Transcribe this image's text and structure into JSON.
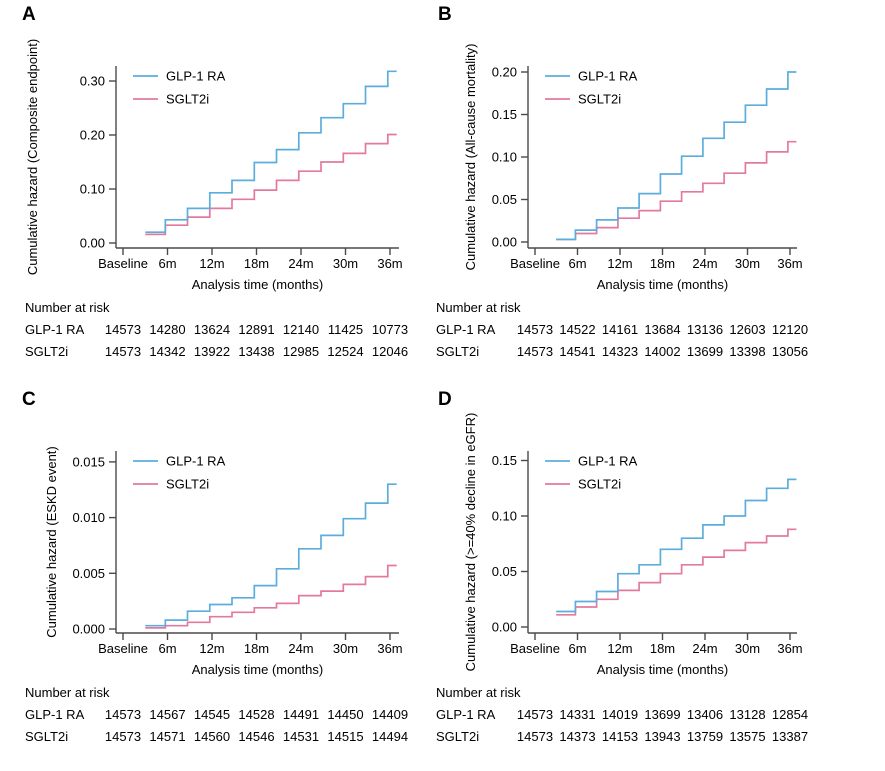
{
  "figure": {
    "background": "#ffffff",
    "colors": {
      "glp1_ra": "#5caddd",
      "sglt2i": "#e37a9d",
      "axis": "#4a4a4a",
      "text": "#000000"
    },
    "legend_labels": [
      "GLP-1 RA",
      "SGLT2i"
    ],
    "x_axis_label": "Analysis time (months)",
    "x_tick_labels": [
      "Baseline",
      "6m",
      "12m",
      "18m",
      "24m",
      "30m",
      "36m"
    ],
    "risk_header": "Number at risk"
  },
  "chart_data": [
    {
      "panel": "A",
      "type": "line",
      "step": true,
      "title": "",
      "ylabel": "Cumulative hazard (Composite endpoint)",
      "xlabel": "Analysis time (months)",
      "x_tick_labels": [
        "Baseline",
        "6m",
        "12m",
        "18m",
        "24m",
        "30m",
        "36m"
      ],
      "y_ticks": [
        0.0,
        0.1,
        0.2,
        0.3
      ],
      "y_tick_labels": [
        "0.00",
        "0.10",
        "0.20",
        "0.30"
      ],
      "ylim": [
        0,
        0.33
      ],
      "legend_position": "top-left",
      "grid": false,
      "x_start_month": 3,
      "step_months": [
        5.7,
        8.7,
        11.7,
        14.7,
        17.7,
        20.7,
        23.7,
        26.7,
        29.7,
        32.7,
        35.7
      ],
      "x_end_month": 36.9,
      "series": [
        {
          "name": "GLP-1 RA",
          "color": "#5caddd",
          "levels": [
            0.02,
            0.043,
            0.064,
            0.093,
            0.116,
            0.149,
            0.173,
            0.204,
            0.232,
            0.258,
            0.29,
            0.318
          ]
        },
        {
          "name": "SGLT2i",
          "color": "#e37a9d",
          "levels": [
            0.016,
            0.033,
            0.048,
            0.064,
            0.081,
            0.098,
            0.116,
            0.133,
            0.15,
            0.166,
            0.184,
            0.201
          ]
        }
      ],
      "number_at_risk": {
        "title": "Number at risk",
        "times": [
          "Baseline",
          "6m",
          "12m",
          "18m",
          "24m",
          "30m",
          "36m"
        ],
        "rows": [
          {
            "label": "GLP-1 RA",
            "values": [
              "14573",
              "14280",
              "13624",
              "12891",
              "12140",
              "11425",
              "10773"
            ]
          },
          {
            "label": "SGLT2i",
            "values": [
              "14573",
              "14342",
              "13922",
              "13438",
              "12985",
              "12524",
              "12046"
            ]
          }
        ]
      }
    },
    {
      "panel": "B",
      "type": "line",
      "step": true,
      "title": "",
      "ylabel": "Cumulative hazard (All-cause mortality)",
      "xlabel": "Analysis time (months)",
      "x_tick_labels": [
        "Baseline",
        "6m",
        "12m",
        "18m",
        "24m",
        "30m",
        "36m"
      ],
      "y_ticks": [
        0.0,
        0.05,
        0.1,
        0.15,
        0.2
      ],
      "y_tick_labels": [
        "0.00",
        "0.05",
        "0.10",
        "0.15",
        "0.20"
      ],
      "ylim": [
        0,
        0.21
      ],
      "legend_position": "top-left",
      "grid": false,
      "x_start_month": 3,
      "step_months": [
        5.7,
        8.7,
        11.7,
        14.7,
        17.7,
        20.7,
        23.7,
        26.7,
        29.7,
        32.7,
        35.7
      ],
      "x_end_month": 36.9,
      "series": [
        {
          "name": "GLP-1 RA",
          "color": "#5caddd",
          "levels": [
            0.003,
            0.014,
            0.026,
            0.04,
            0.057,
            0.08,
            0.101,
            0.122,
            0.141,
            0.161,
            0.18,
            0.2
          ]
        },
        {
          "name": "SGLT2i",
          "color": "#e37a9d",
          "levels": [
            0.003,
            0.01,
            0.017,
            0.028,
            0.037,
            0.048,
            0.059,
            0.069,
            0.081,
            0.093,
            0.106,
            0.118
          ]
        }
      ],
      "number_at_risk": {
        "title": "Number at risk",
        "times": [
          "Baseline",
          "6m",
          "12m",
          "18m",
          "24m",
          "30m",
          "36m"
        ],
        "rows": [
          {
            "label": "GLP-1 RA",
            "values": [
              "14573",
              "14522",
              "14161",
              "13684",
              "13136",
              "12603",
              "12120"
            ]
          },
          {
            "label": "SGLT2i",
            "values": [
              "14573",
              "14541",
              "14323",
              "14002",
              "13699",
              "13398",
              "13056"
            ]
          }
        ]
      }
    },
    {
      "panel": "C",
      "type": "line",
      "step": true,
      "title": "",
      "ylabel": "Cumulative hazard (ESKD event)",
      "xlabel": "Analysis time (months)",
      "x_tick_labels": [
        "Baseline",
        "6m",
        "12m",
        "18m",
        "24m",
        "30m",
        "36m"
      ],
      "y_ticks": [
        0.0,
        0.005,
        0.01,
        0.015
      ],
      "y_tick_labels": [
        "0.000",
        "0.005",
        "0.010",
        "0.015"
      ],
      "ylim": [
        0,
        0.016
      ],
      "legend_position": "top-left",
      "grid": false,
      "x_start_month": 3,
      "step_months": [
        5.7,
        8.7,
        11.7,
        14.7,
        17.7,
        20.7,
        23.7,
        26.7,
        29.7,
        32.7,
        35.7
      ],
      "x_end_month": 36.9,
      "series": [
        {
          "name": "GLP-1 RA",
          "color": "#5caddd",
          "levels": [
            0.0003,
            0.0008,
            0.0016,
            0.0022,
            0.0028,
            0.0039,
            0.0054,
            0.0072,
            0.0084,
            0.0099,
            0.0113,
            0.013
          ]
        },
        {
          "name": "SGLT2i",
          "color": "#e37a9d",
          "levels": [
            0.0001,
            0.0003,
            0.0006,
            0.0011,
            0.0015,
            0.0019,
            0.0023,
            0.003,
            0.0034,
            0.004,
            0.0047,
            0.0057
          ]
        }
      ],
      "number_at_risk": {
        "title": "Number at risk",
        "times": [
          "Baseline",
          "6m",
          "12m",
          "18m",
          "24m",
          "30m",
          "36m"
        ],
        "rows": [
          {
            "label": "GLP-1 RA",
            "values": [
              "14573",
              "14567",
              "14545",
              "14528",
              "14491",
              "14450",
              "14409"
            ]
          },
          {
            "label": "SGLT2i",
            "values": [
              "14573",
              "14571",
              "14560",
              "14546",
              "14531",
              "14515",
              "14494"
            ]
          }
        ]
      }
    },
    {
      "panel": "D",
      "type": "line",
      "step": true,
      "title": "",
      "ylabel": "Cumulative hazard (>=40% decline in eGFR)",
      "xlabel": "Analysis time (months)",
      "x_tick_labels": [
        "Baseline",
        "6m",
        "12m",
        "18m",
        "24m",
        "30m",
        "36m"
      ],
      "y_ticks": [
        0.0,
        0.05,
        0.1,
        0.15
      ],
      "y_tick_labels": [
        "0.00",
        "0.05",
        "0.10",
        "0.15"
      ],
      "ylim": [
        0,
        0.16
      ],
      "legend_position": "top-left",
      "grid": false,
      "x_start_month": 3,
      "step_months": [
        5.7,
        8.7,
        11.7,
        14.7,
        17.7,
        20.7,
        23.7,
        26.7,
        29.7,
        32.7,
        35.7
      ],
      "x_end_month": 36.9,
      "series": [
        {
          "name": "GLP-1 RA",
          "color": "#5caddd",
          "levels": [
            0.014,
            0.023,
            0.032,
            0.048,
            0.056,
            0.07,
            0.08,
            0.092,
            0.1,
            0.114,
            0.125,
            0.133
          ]
        },
        {
          "name": "SGLT2i",
          "color": "#e37a9d",
          "levels": [
            0.011,
            0.018,
            0.025,
            0.033,
            0.04,
            0.048,
            0.056,
            0.063,
            0.069,
            0.076,
            0.082,
            0.088
          ]
        }
      ],
      "number_at_risk": {
        "title": "Number at risk",
        "times": [
          "Baseline",
          "6m",
          "12m",
          "18m",
          "24m",
          "30m",
          "36m"
        ],
        "rows": [
          {
            "label": "GLP-1 RA",
            "values": [
              "14573",
              "14331",
              "14019",
              "13699",
              "13406",
              "13128",
              "12854"
            ]
          },
          {
            "label": "SGLT2i",
            "values": [
              "14573",
              "14373",
              "14153",
              "13943",
              "13759",
              "13575",
              "13387"
            ]
          }
        ]
      }
    }
  ]
}
